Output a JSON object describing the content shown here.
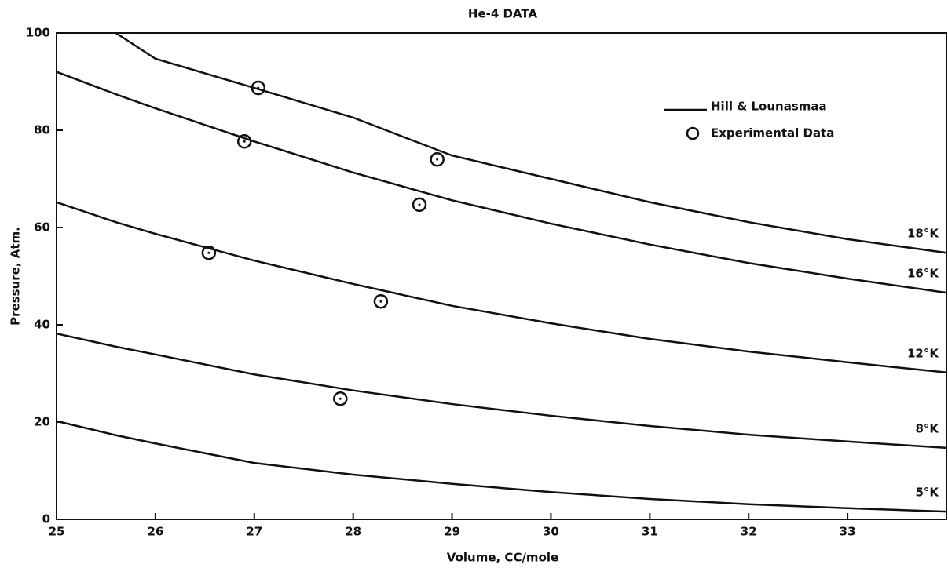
{
  "chart_data": {
    "type": "line",
    "title": "He-4 DATA",
    "x_label": "Volume, CC/mole",
    "y_label": "Pressure, Atm.",
    "x": [
      25,
      25.6,
      26,
      27,
      28,
      29,
      30,
      31,
      32,
      33,
      34
    ],
    "series": [
      {
        "name": "18°K",
        "color": "#111111",
        "values": [
          null,
          100,
          94.7,
          88.7,
          82.6,
          74.8,
          70,
          65.2,
          61.1,
          57.6,
          54.8
        ]
      },
      {
        "name": "16°K",
        "color": "#111111",
        "values": [
          92,
          87.4,
          84.5,
          77.7,
          71.3,
          65.6,
          60.8,
          56.5,
          52.7,
          49.5,
          46.6
        ]
      },
      {
        "name": "12°K",
        "color": "#111111",
        "values": [
          65.2,
          61.1,
          58.7,
          53.2,
          48.4,
          43.9,
          40.3,
          37.1,
          34.5,
          32.3,
          30.2
        ]
      },
      {
        "name": "8°K",
        "color": "#111111",
        "values": [
          38.2,
          35.5,
          33.9,
          29.8,
          26.5,
          23.7,
          21.3,
          19.2,
          17.4,
          16,
          14.7
        ]
      },
      {
        "name": "5°K",
        "color": "#111111",
        "values": [
          20.2,
          17.3,
          15.6,
          11.6,
          9.2,
          7.3,
          5.6,
          4.2,
          3.1,
          2.3,
          1.6
        ]
      }
    ],
    "line_legend": "Hill & Lounasmaa",
    "points": {
      "name": "Experimental Data",
      "color": "#111111",
      "x": [
        27.04,
        26.9,
        28.85,
        28.67,
        26.54,
        28.28,
        27.87
      ],
      "y": [
        88.7,
        77.7,
        74.0,
        64.7,
        54.8,
        44.8,
        24.8
      ]
    },
    "xlim": [
      25,
      34
    ],
    "ylim": [
      0,
      100
    ],
    "xticks": [
      25,
      26,
      27,
      28,
      29,
      30,
      31,
      32,
      33
    ],
    "yticks": [
      0,
      20,
      40,
      60,
      80,
      100
    ]
  }
}
